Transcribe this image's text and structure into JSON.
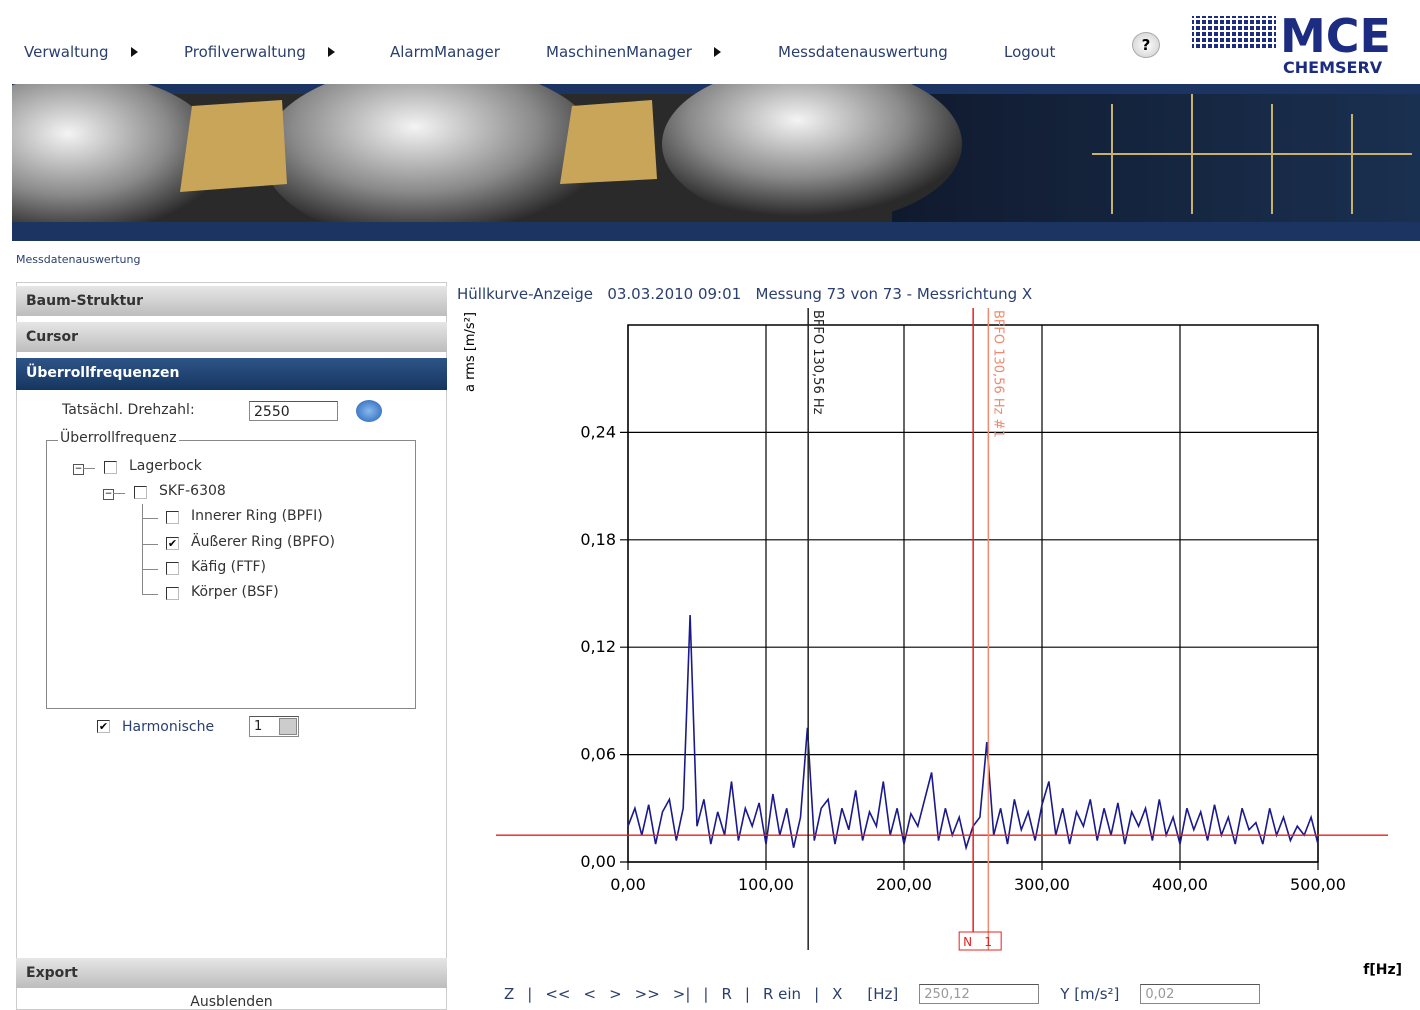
{
  "header": {
    "nav": [
      {
        "label": "Verwaltung",
        "submenu": true
      },
      {
        "label": "Profilverwaltung",
        "submenu": true
      },
      {
        "label": "AlarmManager",
        "submenu": false
      },
      {
        "label": "MaschinenManager",
        "submenu": true
      },
      {
        "label": "Messdatenauswertung",
        "submenu": false
      },
      {
        "label": "Logout",
        "submenu": false
      }
    ],
    "help": "?",
    "logo": {
      "name": "MCE",
      "sub": "CHEMSERV"
    }
  },
  "breadcrumb": "Messdatenauswertung",
  "sidebar": {
    "sections": [
      "Baum-Struktur",
      "Cursor",
      "Überrollfrequenzen"
    ],
    "speed_label": "Tatsächl. Drehzahl:",
    "speed_value": "2550",
    "group_label": "Überrollfrequenz",
    "tree": [
      {
        "label": "Lagerbock",
        "checked": false,
        "level": 0
      },
      {
        "label": "SKF-6308",
        "checked": false,
        "level": 1
      },
      {
        "label": "Innerer Ring (BPFI)",
        "checked": false,
        "level": 2
      },
      {
        "label": "Äußerer Ring (BPFO)",
        "checked": true,
        "level": 2
      },
      {
        "label": "Käfig (FTF)",
        "checked": false,
        "level": 2
      },
      {
        "label": "Körper (BSF)",
        "checked": false,
        "level": 2
      }
    ],
    "harmonics": {
      "label": "Harmonische",
      "checked": true,
      "value": "1"
    },
    "export": "Export",
    "hide": "Ausblenden"
  },
  "chart_header": [
    "Hüllkurve-Anzeige",
    "03.03.2010 09:01",
    "Messung 73 von 73 - Messrichtung X"
  ],
  "chart_data": {
    "type": "line",
    "ylabel": "a rms [m/s²]",
    "xlabel": "f[Hz]",
    "grid": true,
    "xlim": [
      0,
      500
    ],
    "ylim": [
      0,
      0.3
    ],
    "xticks": [
      {
        "value": 0,
        "label": "0,00"
      },
      {
        "value": 100,
        "label": "100,00"
      },
      {
        "value": 200,
        "label": "200,00"
      },
      {
        "value": 300,
        "label": "300,00"
      },
      {
        "value": 400,
        "label": "400,00"
      },
      {
        "value": 500,
        "label": "500,00"
      }
    ],
    "yticks": [
      {
        "value": 0,
        "label": "0,00"
      },
      {
        "value": 0.06,
        "label": "0,06"
      },
      {
        "value": 0.12,
        "label": "0,12"
      },
      {
        "value": 0.18,
        "label": "0,18"
      },
      {
        "value": 0.24,
        "label": "0,24"
      }
    ],
    "x": [
      0,
      5,
      10,
      15,
      20,
      25,
      30,
      35,
      40,
      45,
      50,
      55,
      60,
      65,
      70,
      75,
      80,
      85,
      90,
      95,
      100,
      105,
      110,
      115,
      120,
      125,
      130,
      135,
      140,
      145,
      150,
      155,
      160,
      165,
      170,
      175,
      180,
      185,
      190,
      195,
      200,
      205,
      210,
      215,
      220,
      225,
      230,
      235,
      240,
      245,
      250,
      255,
      260,
      265,
      270,
      275,
      280,
      285,
      290,
      295,
      300,
      305,
      310,
      315,
      320,
      325,
      330,
      335,
      340,
      345,
      350,
      355,
      360,
      365,
      370,
      375,
      380,
      385,
      390,
      395,
      400,
      405,
      410,
      415,
      420,
      425,
      430,
      435,
      440,
      445,
      450,
      455,
      460,
      465,
      470,
      475,
      480,
      485,
      490,
      495,
      500
    ],
    "series": [
      {
        "color": "#1a1a8c",
        "values": [
          0.02,
          0.03,
          0.015,
          0.032,
          0.01,
          0.028,
          0.035,
          0.012,
          0.03,
          0.138,
          0.02,
          0.035,
          0.01,
          0.028,
          0.015,
          0.045,
          0.012,
          0.03,
          0.02,
          0.033,
          0.01,
          0.038,
          0.015,
          0.03,
          0.008,
          0.025,
          0.075,
          0.012,
          0.03,
          0.035,
          0.01,
          0.03,
          0.018,
          0.04,
          0.012,
          0.028,
          0.02,
          0.045,
          0.015,
          0.03,
          0.01,
          0.027,
          0.02,
          0.035,
          0.05,
          0.012,
          0.03,
          0.015,
          0.025,
          0.008,
          0.02,
          0.025,
          0.067,
          0.015,
          0.03,
          0.01,
          0.035,
          0.018,
          0.028,
          0.012,
          0.032,
          0.045,
          0.015,
          0.03,
          0.01,
          0.028,
          0.02,
          0.035,
          0.012,
          0.03,
          0.015,
          0.033,
          0.01,
          0.028,
          0.02,
          0.03,
          0.012,
          0.035,
          0.015,
          0.025,
          0.01,
          0.03,
          0.018,
          0.028,
          0.012,
          0.032,
          0.015,
          0.025,
          0.01,
          0.03,
          0.018,
          0.022,
          0.01,
          0.03,
          0.015,
          0.025,
          0.012,
          0.02,
          0.015,
          0.025,
          0.01
        ]
      }
    ],
    "markers": [
      {
        "x": 130.56,
        "label": "BFFO 130,56 Hz",
        "color": "#222222"
      },
      {
        "x": 261.12,
        "label": "BFFO 130,56 Hz #1",
        "tag": "1",
        "color": "#f08a70"
      }
    ],
    "cursor": {
      "x": 250.12,
      "y": 0.015,
      "tag": "N",
      "color": "#e82020"
    }
  },
  "toolbar": {
    "groups": [
      [
        "Z"
      ],
      [
        "<<",
        "<",
        ">",
        ">>",
        ">|"
      ],
      [
        "R"
      ],
      [
        "R ein"
      ]
    ],
    "x_label": "X",
    "x_unit": "[Hz]",
    "x_value": "250,12",
    "y_label": "Y [m/s²]",
    "y_value": "0,02"
  }
}
